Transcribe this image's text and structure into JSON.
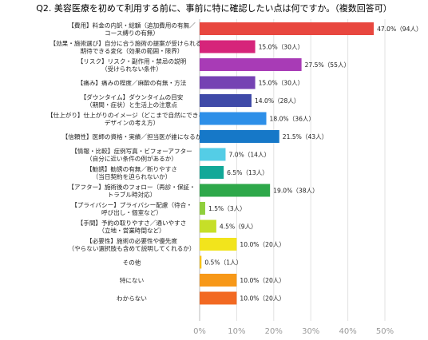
{
  "chart_data": {
    "type": "bar",
    "orientation": "horizontal",
    "title": "Q2. 美容医療を初めて利用する前に、事前に特に確認したい点は何ですか。（複数回答可）",
    "categories": [
      [
        "【費用】料金の内訳・総額（追加費用の有無／",
        "コース縛りの有無）"
      ],
      [
        "【効果・施術選び】自分に合う施術の提案が受けられるか／",
        "期待できる変化（効果の範囲・限界）"
      ],
      [
        "【リスク】リスク・副作用・禁忌の説明",
        "（受けられない条件）"
      ],
      [
        "【痛み】痛みの程度／麻酔の有無・方法"
      ],
      [
        "【ダウンタイム】ダウンタイムの目安",
        "（期間・症状）と生活上の注意点"
      ],
      [
        "【仕上がり】仕上がりのイメージ（どこまで自然にできるか／",
        "デザインの考え方）"
      ],
      [
        "【信頼性】医師の資格・実績／担当医が誰になるか"
      ],
      [
        "【情報・比較】症例写真・ビフォーアフター",
        "（自分に近い条件の例があるか）"
      ],
      [
        "【勧誘】勧誘の有無／断りやすさ",
        "（当日契約を迫られないか）"
      ],
      [
        "【アフター】施術後のフォロー（再診・保証・",
        "トラブル時対応）"
      ],
      [
        "【プライバシー】プライバシー配慮（待合・",
        "呼び出し・個室など）"
      ],
      [
        "【手間】予約の取りやすさ／通いやすさ",
        "（立地・営業時間など）"
      ],
      [
        "【必要性】施術の必要性や優先度",
        "（やらない選択肢も含めて説明してくれるか）"
      ],
      [
        "その他"
      ],
      [
        "特にない"
      ],
      [
        "わからない"
      ]
    ],
    "values": [
      47.0,
      15.0,
      27.5,
      15.0,
      14.0,
      18.0,
      21.5,
      7.0,
      6.5,
      19.0,
      1.5,
      4.5,
      10.0,
      0.5,
      10.0,
      10.0
    ],
    "value_labels": [
      "47.0%（94人）",
      "15.0%（30人）",
      "27.5%（55人）",
      "15.0%（30人）",
      "14.0%（28人）",
      "18.0%（36人）",
      "21.5%（43人）",
      "7.0%（14人）",
      "6.5%（13人）",
      "19.0%（38人）",
      "1.5%（3人）",
      "4.5%（9人）",
      "10.0%（20人）",
      "0.5%（1人）",
      "10.0%（20人）",
      "10.0%（20人）"
    ],
    "colors": [
      "#e8473f",
      "#d6247a",
      "#a83bb6",
      "#7542b3",
      "#3f4aa8",
      "#2d8fe8",
      "#1678c8",
      "#54cde6",
      "#12a898",
      "#2ea84a",
      "#8fcf3c",
      "#c6df28",
      "#f2e41c",
      "#f7c318",
      "#f79818",
      "#f26922"
    ],
    "xlim": [
      0,
      50
    ],
    "xticks": [
      "0%",
      "10%",
      "20%",
      "30%",
      "40%",
      "50%"
    ],
    "grid": true
  }
}
